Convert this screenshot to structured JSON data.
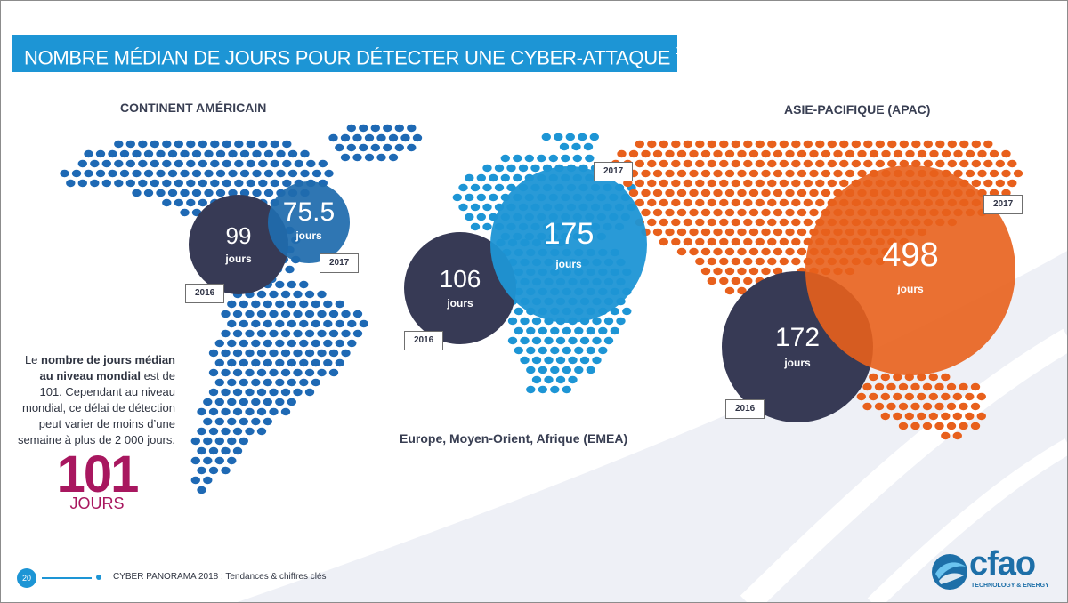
{
  "title": "NOMBRE MÉDIAN DE JOURS POUR DÉTECTER UNE CYBER-ATTAQUE",
  "title_ref": "14",
  "colors": {
    "accent_blue": "#1d95d5",
    "navy": "#373a55",
    "dark_blue": "#1f6cad",
    "orange": "#e8601c",
    "magenta": "#a8175f",
    "americas_dots": "#1e69b4",
    "emea_dots": "#1d95d5",
    "apac_dots": "#e8601c"
  },
  "regions": {
    "americas": {
      "label": "CONTINENT AMÉRICAIN",
      "bubble_2016": {
        "value": "99",
        "unit": "jours",
        "year": "2016"
      },
      "bubble_2017": {
        "value": "75.5",
        "unit": "jours",
        "year": "2017"
      }
    },
    "emea": {
      "label": "Europe, Moyen-Orient, Afrique (EMEA)",
      "bubble_2016": {
        "value": "106",
        "unit": "jours",
        "year": "2016"
      },
      "bubble_2017": {
        "value": "175",
        "unit": "jours",
        "year": "2017"
      }
    },
    "apac": {
      "label": "ASIE-PACIFIQUE (APAC)",
      "bubble_2016": {
        "value": "172",
        "unit": "jours",
        "year": "2016"
      },
      "bubble_2017": {
        "value": "498",
        "unit": "jours",
        "year": "2017"
      }
    }
  },
  "note": {
    "prefix": "Le ",
    "bold": "nombre de jours médian au niveau mondial",
    "suffix": " est de 101. Cependant au niveau mondial, ce délai de détection peut varier de moins d’une semaine à plus de 2 000 jours."
  },
  "global": {
    "value": "101",
    "unit": "JOURS"
  },
  "footer": {
    "page": "20",
    "text": "CYBER PANORAMA 2018 : Tendances & chiffres clés"
  },
  "logo": {
    "name": "cfao",
    "tagline": "TECHNOLOGY & ENERGY",
    "icon": "swirl-globe-icon"
  }
}
